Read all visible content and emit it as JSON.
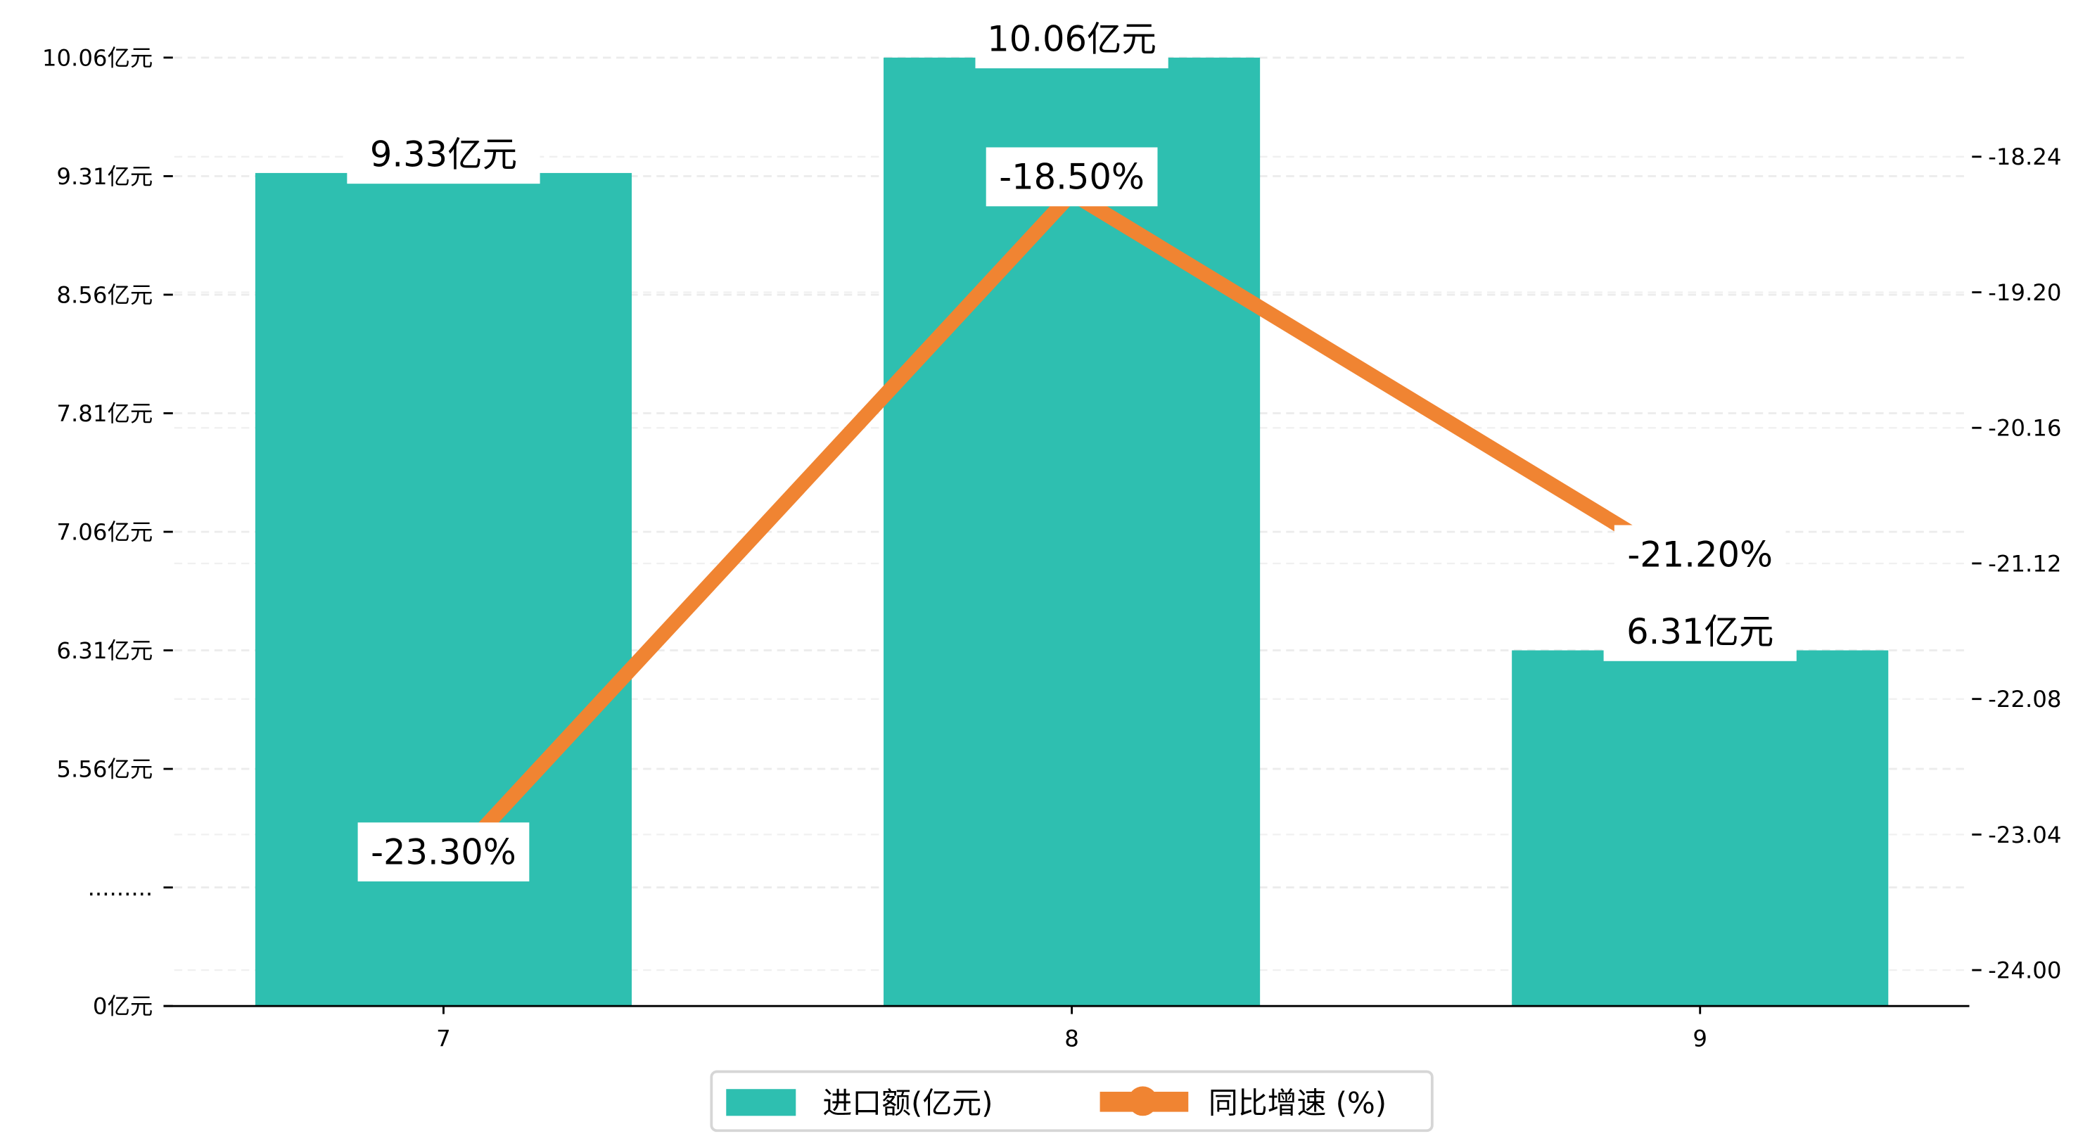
{
  "chart_data": {
    "type": "bar+line",
    "categories": [
      "7",
      "8",
      "9"
    ],
    "series": [
      {
        "name": "进口额(亿元)",
        "type": "bar",
        "axis": "left",
        "values": [
          9.33,
          10.06,
          6.31
        ],
        "labels": [
          "9.33亿元",
          "10.06亿元",
          "6.31亿元"
        ],
        "color": "#2ebfb0"
      },
      {
        "name": "同比增速 (%)",
        "type": "line",
        "axis": "right",
        "values": [
          -23.3,
          -18.5,
          -21.2
        ],
        "labels": [
          "-23.30%",
          "-18.50%",
          "-21.20%"
        ],
        "color": "#f08432"
      }
    ],
    "left_axis": {
      "tick_values": [
        10.06,
        9.31,
        8.56,
        7.81,
        7.06,
        6.31,
        5.56,
        null,
        0
      ],
      "tick_labels": [
        "10.06亿元",
        "9.31亿元",
        "8.56亿元",
        "7.81亿元",
        "7.06亿元",
        "6.31亿元",
        "5.56亿元",
        ".........",
        "0亿元"
      ]
    },
    "right_axis": {
      "tick_values": [
        -18.24,
        -19.2,
        -20.16,
        -21.12,
        -22.08,
        -23.04,
        -24.0
      ],
      "tick_labels": [
        "-18.24",
        "-19.20",
        "-20.16",
        "-21.12",
        "-22.08",
        "-23.04",
        "-24.00"
      ]
    },
    "grid": true,
    "legend": {
      "placement": "bottom-center",
      "entries": [
        "进口额(亿元)",
        "同比增速 (%)"
      ]
    }
  }
}
